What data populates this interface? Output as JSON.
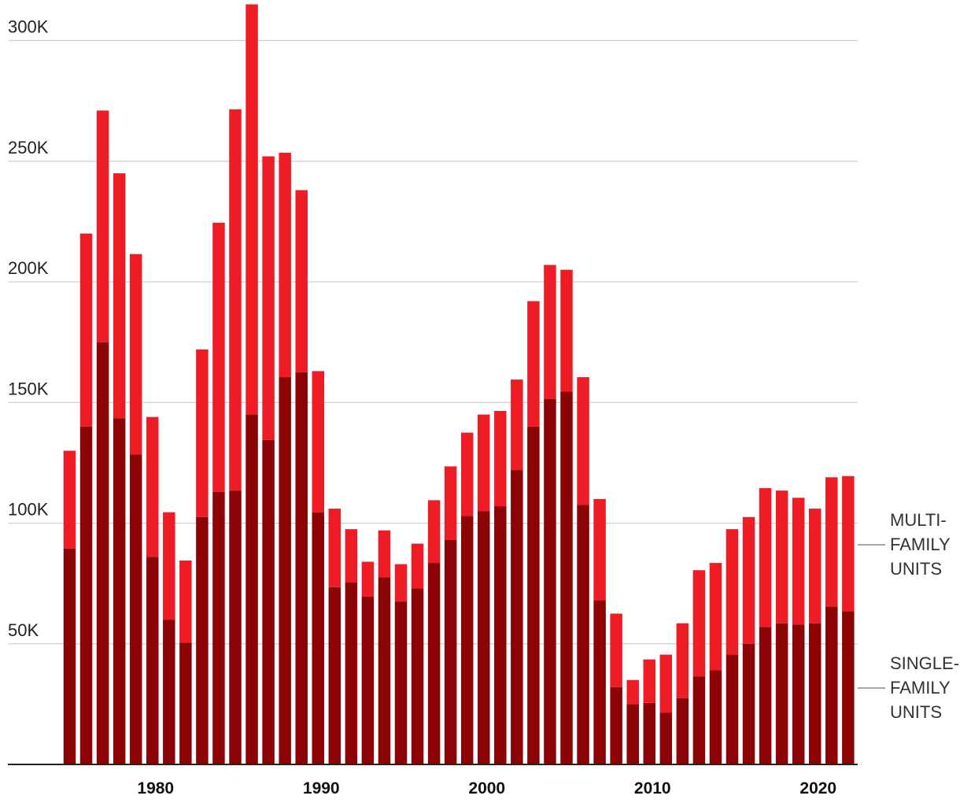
{
  "chart_data": {
    "type": "bar",
    "stacked": true,
    "title": "",
    "xlabel": "",
    "ylabel": "",
    "ylim": [
      0,
      315000
    ],
    "grid": true,
    "y_ticks": [
      {
        "value": 50000,
        "label": "50K"
      },
      {
        "value": 100000,
        "label": "100K"
      },
      {
        "value": 150000,
        "label": "150K"
      },
      {
        "value": 200000,
        "label": "200K"
      },
      {
        "value": 250000,
        "label": "250K"
      },
      {
        "value": 300000,
        "label": "300K"
      }
    ],
    "x_ticks": [
      {
        "value": 1980,
        "label": "1980"
      },
      {
        "value": 1990,
        "label": "1990"
      },
      {
        "value": 2000,
        "label": "2000"
      },
      {
        "value": 2010,
        "label": "2010"
      },
      {
        "value": 2020,
        "label": "2020"
      }
    ],
    "x": [
      1975,
      1976,
      1977,
      1978,
      1979,
      1980,
      1981,
      1982,
      1983,
      1984,
      1985,
      1986,
      1987,
      1988,
      1989,
      1990,
      1991,
      1992,
      1993,
      1994,
      1995,
      1996,
      1997,
      1998,
      1999,
      2000,
      2001,
      2002,
      2003,
      2004,
      2005,
      2006,
      2007,
      2008,
      2009,
      2010,
      2011,
      2012,
      2013,
      2014,
      2015,
      2016,
      2017,
      2018,
      2019,
      2020,
      2021,
      2022
    ],
    "series": [
      {
        "name": "SINGLE-FAMILY UNITS",
        "color": "#8b0304",
        "values": [
          89500,
          140000,
          175000,
          143500,
          128500,
          86000,
          60000,
          50500,
          102500,
          113000,
          113500,
          145000,
          134500,
          160500,
          162500,
          104500,
          73500,
          75500,
          69500,
          77500,
          67500,
          73000,
          83500,
          93000,
          103000,
          105000,
          107000,
          122000,
          140000,
          151500,
          154500,
          107500,
          68000,
          32000,
          25000,
          25500,
          21500,
          27500,
          36500,
          39000,
          45500,
          50000,
          57000,
          58500,
          58000,
          58500,
          65500,
          63500
        ]
      },
      {
        "name": "MULTI-FAMILY UNITS",
        "color": "#ee1c25",
        "values": [
          40500,
          80000,
          96000,
          101500,
          83000,
          58000,
          44500,
          34000,
          69500,
          111500,
          158000,
          170000,
          117500,
          93000,
          75500,
          58500,
          32500,
          22000,
          14500,
          19500,
          15500,
          18500,
          26000,
          30500,
          34500,
          40000,
          39500,
          37500,
          52000,
          55500,
          50500,
          53000,
          42000,
          30500,
          10000,
          18000,
          24000,
          31000,
          44000,
          44500,
          52000,
          52500,
          57500,
          55000,
          52500,
          47500,
          53500,
          56000
        ]
      }
    ],
    "legend_placement": "right"
  }
}
